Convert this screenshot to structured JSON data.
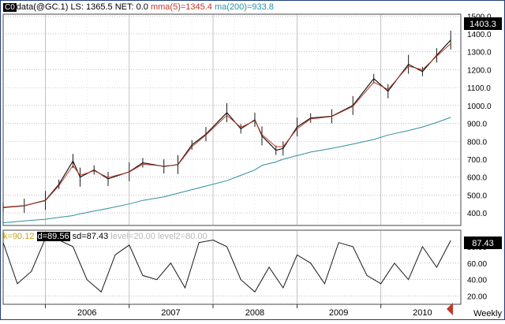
{
  "header": {
    "icon_label": "C0",
    "symbol": "data(@GC.1)",
    "ls": "LS: 1365.5",
    "net": "NET: 0.0",
    "mma": "mma(5)=1345.4",
    "ma": "ma(200)=933.8"
  },
  "osc_header": {
    "k": "k=90.12",
    "d": "d=89.56",
    "sd": "sd=87.43",
    "level1": "level=20.00",
    "level2": "level2=80.00"
  },
  "price_badge": "1403.3",
  "osc_badge": "87.43",
  "period_label": "Weekly",
  "colors": {
    "price": "#1a1a1a",
    "mma": "#c0392b",
    "ma": "#2f8fa0",
    "osc": "#1a1a1a",
    "osc_k_text": "#c9a227",
    "osc_d_bg": "#000000",
    "levels_text": "#b8b8b8",
    "grid": "#9a9a9a",
    "frame": "#1f3f7a",
    "scroll_arrow": "#c0392b"
  },
  "chart_data": [
    {
      "type": "line",
      "panel": "price",
      "y_ticks": [
        "1500.0",
        "1400.0",
        "1300.0",
        "1200.0",
        "1100.0",
        "1000.0",
        "900.0",
        "800.0",
        "700.0",
        "600.0",
        "500.0",
        "400.0"
      ],
      "ylim": [
        330,
        1510
      ],
      "x_ticks": [
        "2006",
        "2007",
        "2008",
        "2009",
        "2010"
      ],
      "x": [
        "2005-07",
        "2005-10",
        "2006-01",
        "2006-03",
        "2006-05",
        "2006-06",
        "2006-08",
        "2006-10",
        "2007-01",
        "2007-03",
        "2007-06",
        "2007-08",
        "2007-10",
        "2007-12",
        "2008-03",
        "2008-05",
        "2008-07",
        "2008-08",
        "2008-10",
        "2008-11",
        "2009-01",
        "2009-03",
        "2009-06",
        "2009-09",
        "2009-12",
        "2010-02",
        "2010-05",
        "2010-07",
        "2010-09",
        "2010-11"
      ],
      "series": [
        {
          "name": "data(@GC.1)",
          "values": [
            430,
            440,
            470,
            560,
            690,
            600,
            640,
            590,
            630,
            680,
            660,
            670,
            780,
            840,
            960,
            870,
            920,
            830,
            750,
            760,
            880,
            930,
            940,
            1000,
            1150,
            1080,
            1230,
            1190,
            1280,
            1365.5
          ]
        },
        {
          "name": "mma(5)",
          "values": [
            432,
            441,
            468,
            552,
            665,
            610,
            635,
            598,
            628,
            672,
            662,
            668,
            770,
            835,
            945,
            878,
            915,
            838,
            770,
            770,
            870,
            925,
            938,
            995,
            1130,
            1090,
            1220,
            1200,
            1275,
            1345.4
          ]
        },
        {
          "name": "ma(200)",
          "values": [
            345,
            355,
            365,
            375,
            385,
            395,
            410,
            425,
            450,
            470,
            490,
            510,
            530,
            550,
            580,
            610,
            640,
            665,
            685,
            700,
            720,
            740,
            760,
            785,
            810,
            835,
            860,
            880,
            905,
            933.8
          ]
        }
      ]
    },
    {
      "type": "line",
      "panel": "oscillator",
      "y_ticks": [
        "80.00",
        "60.00",
        "40.00",
        "20.00"
      ],
      "ylim": [
        10,
        100
      ],
      "x_ticks": [
        "2006",
        "2007",
        "2008",
        "2009",
        "2010"
      ],
      "x": [
        "2005-07",
        "2005-09",
        "2005-11",
        "2006-01",
        "2006-03",
        "2006-05",
        "2006-07",
        "2006-09",
        "2006-11",
        "2007-01",
        "2007-03",
        "2007-05",
        "2007-07",
        "2007-09",
        "2007-11",
        "2008-01",
        "2008-03",
        "2008-05",
        "2008-07",
        "2008-09",
        "2008-11",
        "2009-01",
        "2009-03",
        "2009-05",
        "2009-07",
        "2009-09",
        "2009-11",
        "2010-01",
        "2010-03",
        "2010-05",
        "2010-07",
        "2010-09",
        "2010-11"
      ],
      "series": [
        {
          "name": "sd",
          "values": [
            85,
            35,
            50,
            90,
            88,
            80,
            40,
            25,
            70,
            82,
            45,
            40,
            60,
            30,
            85,
            88,
            80,
            40,
            25,
            55,
            30,
            70,
            60,
            35,
            85,
            80,
            45,
            35,
            60,
            40,
            80,
            55,
            87.43
          ]
        }
      ]
    }
  ]
}
